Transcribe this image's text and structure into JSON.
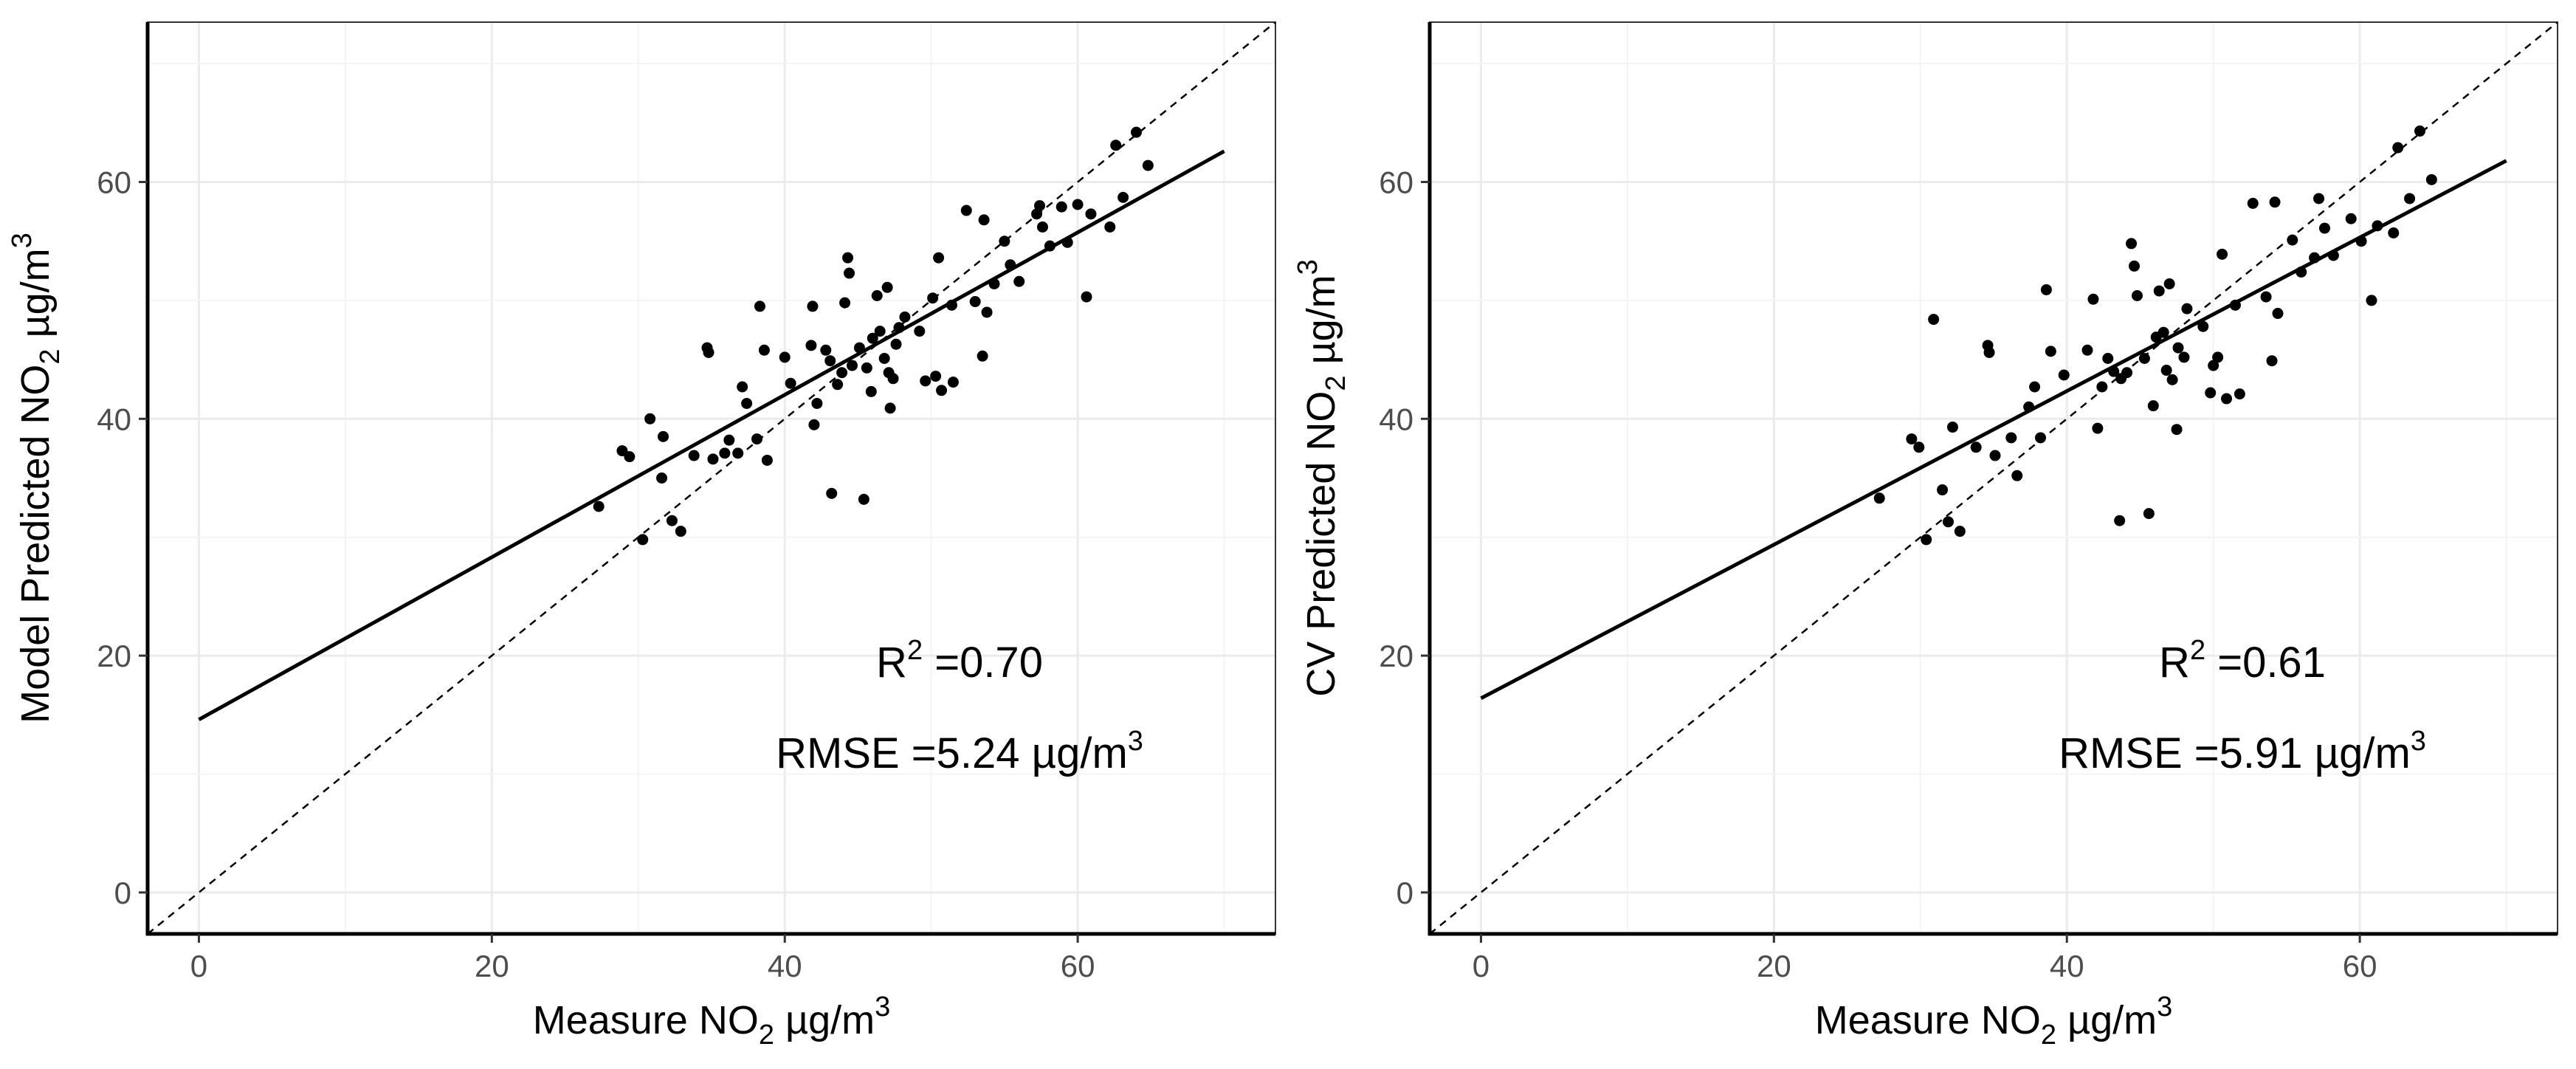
{
  "chart_data": [
    {
      "type": "scatter",
      "panel": "left",
      "xlabel": {
        "pre": "Measure NO",
        "sub": "2",
        "post": " µg/m",
        "sup": "3"
      },
      "ylabel": {
        "pre": "Model Predicted NO",
        "sub": "2",
        "post": " µg/m",
        "sup": "3"
      },
      "xlim": [
        -3.5,
        73.5
      ],
      "ylim": [
        -3.5,
        73.5
      ],
      "xticks": [
        0,
        20,
        40,
        60
      ],
      "yticks": [
        0,
        20,
        40,
        60
      ],
      "grid": true,
      "identity_line": {
        "style": "dashed",
        "from": [
          0,
          0
        ],
        "to": [
          73.5,
          73.5
        ]
      },
      "fit_line": {
        "style": "solid",
        "x": [
          0,
          70
        ],
        "y": [
          14.6,
          62.6
        ]
      },
      "annotations": {
        "r2": {
          "pre": "R",
          "sup": "2",
          "post": " =0.70"
        },
        "rmse": {
          "pre": "RMSE =5.24 µg/m",
          "sup": "3"
        }
      },
      "points": [
        [
          27.3,
          32.6
        ],
        [
          28.9,
          37.3
        ],
        [
          29.4,
          36.8
        ],
        [
          30.3,
          29.8
        ],
        [
          30.8,
          40.0
        ],
        [
          31.6,
          35.0
        ],
        [
          31.7,
          38.5
        ],
        [
          32.3,
          31.4
        ],
        [
          32.9,
          30.5
        ],
        [
          33.8,
          36.9
        ],
        [
          34.7,
          46.0
        ],
        [
          34.8,
          45.6
        ],
        [
          35.1,
          36.6
        ],
        [
          35.9,
          37.1
        ],
        [
          36.2,
          38.2
        ],
        [
          36.8,
          37.1
        ],
        [
          37.1,
          42.7
        ],
        [
          37.4,
          41.3
        ],
        [
          38.1,
          38.3
        ],
        [
          38.3,
          49.5
        ],
        [
          38.6,
          45.8
        ],
        [
          38.8,
          36.5
        ],
        [
          40.0,
          45.2
        ],
        [
          40.4,
          43.0
        ],
        [
          41.9,
          49.5
        ],
        [
          41.8,
          46.2
        ],
        [
          42.0,
          39.5
        ],
        [
          42.2,
          41.3
        ],
        [
          42.8,
          45.8
        ],
        [
          43.1,
          44.9
        ],
        [
          43.2,
          33.7
        ],
        [
          43.6,
          42.9
        ],
        [
          43.9,
          43.9
        ],
        [
          44.1,
          49.8
        ],
        [
          44.3,
          53.6
        ],
        [
          44.4,
          52.3
        ],
        [
          44.6,
          44.5
        ],
        [
          45.1,
          46.0
        ],
        [
          45.4,
          33.2
        ],
        [
          45.6,
          44.3
        ],
        [
          45.9,
          42.3
        ],
        [
          46.0,
          46.8
        ],
        [
          46.3,
          50.4
        ],
        [
          46.5,
          47.4
        ],
        [
          46.8,
          45.1
        ],
        [
          47.0,
          51.1
        ],
        [
          47.1,
          43.9
        ],
        [
          47.2,
          40.9
        ],
        [
          47.4,
          43.4
        ],
        [
          47.6,
          46.3
        ],
        [
          47.8,
          47.7
        ],
        [
          48.2,
          48.6
        ],
        [
          49.2,
          47.4
        ],
        [
          49.6,
          43.2
        ],
        [
          50.1,
          50.2
        ],
        [
          50.3,
          43.6
        ],
        [
          50.5,
          53.6
        ],
        [
          50.7,
          42.4
        ],
        [
          51.4,
          49.6
        ],
        [
          51.5,
          43.1
        ],
        [
          52.4,
          57.6
        ],
        [
          53.0,
          49.9
        ],
        [
          53.5,
          45.3
        ],
        [
          53.6,
          56.8
        ],
        [
          53.8,
          49.0
        ],
        [
          54.3,
          51.4
        ],
        [
          55.0,
          55.0
        ],
        [
          55.4,
          53.0
        ],
        [
          56.0,
          51.6
        ],
        [
          57.2,
          57.3
        ],
        [
          57.4,
          58.0
        ],
        [
          57.6,
          56.2
        ],
        [
          58.1,
          54.6
        ],
        [
          58.9,
          57.9
        ],
        [
          59.3,
          54.9
        ],
        [
          60.0,
          58.1
        ],
        [
          60.6,
          50.3
        ],
        [
          60.9,
          57.3
        ],
        [
          62.2,
          56.2
        ],
        [
          62.6,
          63.1
        ],
        [
          63.1,
          58.7
        ],
        [
          64.0,
          64.2
        ],
        [
          64.8,
          61.4
        ]
      ]
    },
    {
      "type": "scatter",
      "panel": "right",
      "xlabel": {
        "pre": "Measure NO",
        "sub": "2",
        "post": " µg/m",
        "sup": "3"
      },
      "ylabel": {
        "pre": "CV Predicted NO",
        "sub": "2",
        "post": " µg/m",
        "sup": "3"
      },
      "xlim": [
        -3.5,
        73.5
      ],
      "ylim": [
        -3.5,
        73.5
      ],
      "xticks": [
        0,
        20,
        40,
        60
      ],
      "yticks": [
        0,
        20,
        40,
        60
      ],
      "grid": true,
      "identity_line": {
        "style": "dashed",
        "from": [
          0,
          0
        ],
        "to": [
          73.5,
          73.5
        ]
      },
      "fit_line": {
        "style": "solid",
        "x": [
          0,
          70
        ],
        "y": [
          16.4,
          61.8
        ]
      },
      "annotations": {
        "r2": {
          "pre": "R",
          "sup": "2",
          "post": " =0.61"
        },
        "rmse": {
          "pre": "RMSE =5.91 µg/m",
          "sup": "3"
        }
      },
      "points": [
        [
          27.2,
          33.3
        ],
        [
          29.4,
          38.3
        ],
        [
          29.9,
          37.6
        ],
        [
          30.4,
          29.8
        ],
        [
          30.9,
          48.4
        ],
        [
          31.5,
          34.0
        ],
        [
          31.9,
          31.3
        ],
        [
          32.2,
          39.3
        ],
        [
          32.7,
          30.5
        ],
        [
          33.8,
          37.6
        ],
        [
          34.6,
          46.2
        ],
        [
          34.7,
          45.6
        ],
        [
          35.1,
          36.9
        ],
        [
          36.2,
          38.4
        ],
        [
          36.6,
          35.2
        ],
        [
          37.4,
          41.0
        ],
        [
          37.8,
          42.7
        ],
        [
          38.2,
          38.4
        ],
        [
          38.6,
          50.9
        ],
        [
          38.9,
          45.7
        ],
        [
          39.8,
          43.7
        ],
        [
          41.4,
          45.8
        ],
        [
          41.8,
          50.1
        ],
        [
          42.1,
          39.2
        ],
        [
          42.4,
          42.7
        ],
        [
          42.8,
          45.1
        ],
        [
          43.2,
          44.0
        ],
        [
          43.6,
          31.4
        ],
        [
          43.7,
          43.4
        ],
        [
          44.1,
          43.9
        ],
        [
          44.4,
          54.8
        ],
        [
          44.6,
          52.9
        ],
        [
          44.8,
          50.4
        ],
        [
          45.3,
          45.1
        ],
        [
          45.6,
          32.0
        ],
        [
          45.9,
          41.1
        ],
        [
          46.1,
          46.9
        ],
        [
          46.3,
          50.8
        ],
        [
          46.6,
          47.3
        ],
        [
          46.8,
          44.1
        ],
        [
          47.0,
          51.4
        ],
        [
          47.2,
          43.3
        ],
        [
          47.5,
          39.1
        ],
        [
          47.6,
          46.0
        ],
        [
          48.0,
          45.2
        ],
        [
          48.2,
          49.3
        ],
        [
          49.3,
          47.8
        ],
        [
          49.8,
          42.2
        ],
        [
          50.0,
          44.5
        ],
        [
          50.3,
          45.2
        ],
        [
          50.6,
          53.9
        ],
        [
          50.9,
          41.7
        ],
        [
          51.5,
          49.6
        ],
        [
          51.8,
          42.1
        ],
        [
          52.7,
          58.2
        ],
        [
          53.6,
          50.3
        ],
        [
          54.0,
          44.9
        ],
        [
          54.2,
          58.3
        ],
        [
          54.4,
          48.9
        ],
        [
          55.4,
          55.1
        ],
        [
          56.0,
          52.4
        ],
        [
          56.9,
          53.6
        ],
        [
          57.2,
          58.6
        ],
        [
          57.6,
          56.1
        ],
        [
          58.2,
          53.8
        ],
        [
          59.4,
          56.9
        ],
        [
          60.1,
          55.0
        ],
        [
          60.8,
          50.0
        ],
        [
          61.2,
          56.3
        ],
        [
          62.3,
          55.7
        ],
        [
          62.6,
          62.9
        ],
        [
          63.4,
          58.6
        ],
        [
          64.1,
          64.3
        ],
        [
          64.9,
          60.2
        ]
      ]
    }
  ]
}
